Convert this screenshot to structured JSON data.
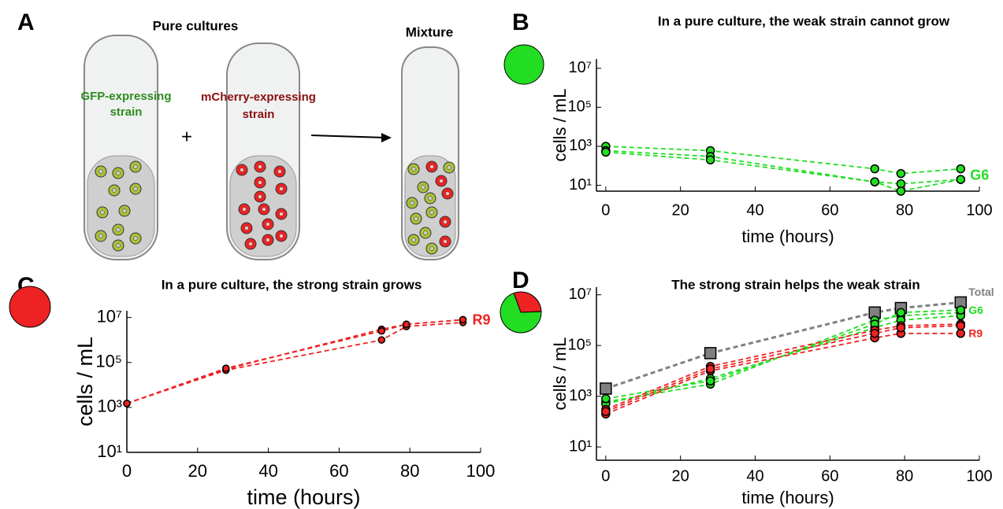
{
  "panel_labels": [
    "A",
    "B",
    "C",
    "D"
  ],
  "panel_a": {
    "left_title": "Pure cultures",
    "right_title": "Mixture",
    "gfp_label": [
      "GFP-expressing",
      "strain"
    ],
    "mcherry_label": [
      "mCherry-expressing",
      "strain"
    ],
    "plus": "+"
  },
  "chart_data": [
    {
      "type": "line",
      "title": "In a pure culture, the weak strain cannot grow",
      "xlabel": "time (hours)",
      "ylabel": "cells / mL",
      "yscale": "log",
      "x": [
        0,
        28,
        72,
        79,
        95
      ],
      "xlim": [
        -2.5,
        100
      ],
      "xticks": [
        0,
        20,
        40,
        60,
        80,
        100
      ],
      "ylim": [
        5,
        30000000
      ],
      "yticks": [
        {
          "value": 10,
          "label": "10¹"
        },
        {
          "value": 1000,
          "label": "10³"
        },
        {
          "value": 100000,
          "label": "10⁵"
        },
        {
          "value": 10000000,
          "label": "10⁷"
        }
      ],
      "series": [
        {
          "name": "G6",
          "color": "#22dd22",
          "marker": "circle",
          "replicates": [
            [
              1000,
              600,
              70,
              40,
              70
            ],
            [
              600,
              300,
              15,
              12,
              20
            ],
            [
              500,
              200,
              15,
              5,
              20
            ]
          ]
        }
      ]
    },
    {
      "type": "line",
      "title": "In a pure culture, the strong strain grows",
      "xlabel": "time (hours)",
      "ylabel": "cells / mL",
      "yscale": "log",
      "x": [
        0,
        28,
        72,
        79,
        95
      ],
      "xlim": [
        0,
        100
      ],
      "xticks": [
        0,
        20,
        40,
        60,
        80,
        100
      ],
      "ylim": [
        10,
        20000000
      ],
      "yticks": [
        {
          "value": 10,
          "label": "10¹"
        },
        {
          "value": 1000,
          "label": "10³"
        },
        {
          "value": 100000,
          "label": "10⁵"
        },
        {
          "value": 10000000,
          "label": "10⁷"
        }
      ],
      "series": [
        {
          "name": "R9",
          "color": "#ee2222",
          "marker": "circle",
          "replicates": [
            [
              1500,
              50000,
              3000000,
              5000000,
              8000000
            ],
            [
              1500,
              45000,
              1000000,
              4000000,
              6000000
            ],
            [
              1500,
              55000,
              2500000,
              5000000,
              8000000
            ]
          ]
        }
      ]
    },
    {
      "type": "line",
      "title": "The strong strain helps the weak strain",
      "xlabel": "time (hours)",
      "ylabel": "cells / mL",
      "yscale": "log",
      "x": [
        0,
        28,
        72,
        79,
        95
      ],
      "xlim": [
        -2.5,
        100
      ],
      "xticks": [
        0,
        20,
        40,
        60,
        80,
        100
      ],
      "ylim": [
        3,
        20000000
      ],
      "yticks": [
        {
          "value": 10,
          "label": "10¹"
        },
        {
          "value": 1000,
          "label": "10³"
        },
        {
          "value": 100000,
          "label": "10⁵"
        },
        {
          "value": 10000000,
          "label": "10⁷"
        }
      ],
      "inset_pie": {
        "values": [
          30,
          70
        ],
        "colors": [
          "#ee2222",
          "#22dd22"
        ]
      },
      "series": [
        {
          "name": "Total",
          "color": "#808080",
          "marker": "square",
          "replicates": [
            [
              2000,
              50000,
              2000000,
              3000000,
              5000000
            ]
          ]
        },
        {
          "name": "G6",
          "color": "#22dd22",
          "marker": "circle",
          "replicates": [
            [
              600,
              3000,
              1000000,
              1500000,
              2000000
            ],
            [
              500,
              5000,
              500000,
              1000000,
              1500000
            ],
            [
              800,
              4000,
              700000,
              2000000,
              2500000
            ]
          ]
        },
        {
          "name": "R9",
          "color": "#ee2222",
          "marker": "circle",
          "replicates": [
            [
              200,
              10000,
              200000,
              300000,
              300000
            ],
            [
              300,
              15000,
              400000,
              600000,
              700000
            ],
            [
              250,
              12000,
              300000,
              500000,
              600000
            ]
          ]
        }
      ]
    }
  ]
}
